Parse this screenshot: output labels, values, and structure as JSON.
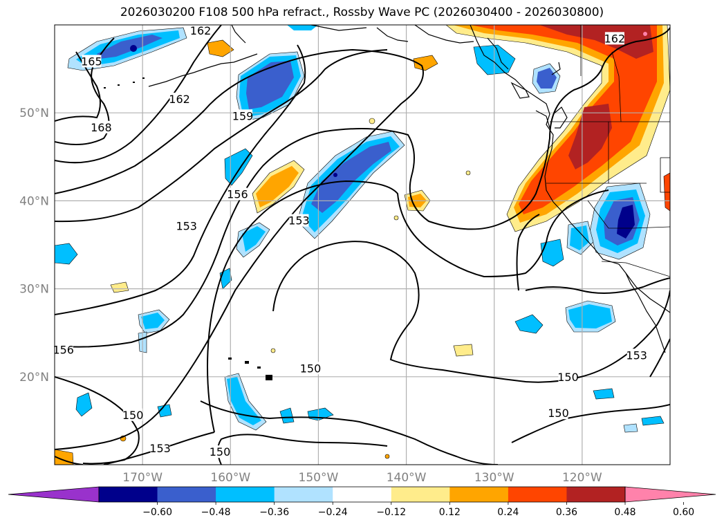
{
  "title": "2026030200 F108 500 hPa refract., Rossby Wave PC (2026030400 - 2026030800)",
  "map": {
    "lon_range": [
      -180,
      -110
    ],
    "lat_range": [
      10,
      60
    ],
    "lat_ticks": [
      {
        "value": 50,
        "label": "50°N"
      },
      {
        "value": 40,
        "label": "40°N"
      },
      {
        "value": 30,
        "label": "30°N"
      },
      {
        "value": 20,
        "label": "20°N"
      }
    ],
    "lon_ticks": [
      {
        "value": -170,
        "label": "170°W"
      },
      {
        "value": -160,
        "label": "160°W"
      },
      {
        "value": -150,
        "label": "150°W"
      },
      {
        "value": -140,
        "label": "140°W"
      },
      {
        "value": -130,
        "label": "130°W"
      },
      {
        "value": -120,
        "label": "120°W"
      }
    ],
    "contour_labels": [
      {
        "text": "162",
        "lon": -163.4,
        "lat": 59.3
      },
      {
        "text": "162",
        "lon": -116.3,
        "lat": 58.4
      },
      {
        "text": "165",
        "lon": -175.8,
        "lat": 55.8
      },
      {
        "text": "162",
        "lon": -165.8,
        "lat": 51.5
      },
      {
        "text": "159",
        "lon": -158.6,
        "lat": 49.6
      },
      {
        "text": "168",
        "lon": -174.7,
        "lat": 48.3
      },
      {
        "text": "156",
        "lon": -159.2,
        "lat": 40.7
      },
      {
        "text": "153",
        "lon": -165.0,
        "lat": 37.1
      },
      {
        "text": "153",
        "lon": -152.2,
        "lat": 37.7
      },
      {
        "text": "156",
        "lon": -179.0,
        "lat": 23.0
      },
      {
        "text": "150",
        "lon": -150.9,
        "lat": 20.9
      },
      {
        "text": "150",
        "lon": -121.6,
        "lat": 19.9
      },
      {
        "text": "153",
        "lon": -113.8,
        "lat": 22.4
      },
      {
        "text": "150",
        "lon": -171.1,
        "lat": 15.6
      },
      {
        "text": "150",
        "lon": -122.7,
        "lat": 15.8
      },
      {
        "text": "153",
        "lon": -168.0,
        "lat": 11.8
      },
      {
        "text": "150",
        "lon": -161.2,
        "lat": 11.4
      }
    ]
  },
  "colorbar": {
    "colors": [
      "#9932CC",
      "#00008B",
      "#3A5FCD",
      "#00BFFF",
      "#B0E2FF",
      "#FFFFFF",
      "#FFEC8B",
      "#FFA500",
      "#FF4500",
      "#B22222",
      "#FF82AB"
    ],
    "tick_labels": [
      "−0.60",
      "−0.48",
      "−0.36",
      "−0.24",
      "−0.12",
      "0.12",
      "0.24",
      "0.36",
      "0.48",
      "0.60"
    ]
  },
  "colors": {
    "coastline": "#000000",
    "grid": "#b0b0b0",
    "contour": "#000000"
  }
}
